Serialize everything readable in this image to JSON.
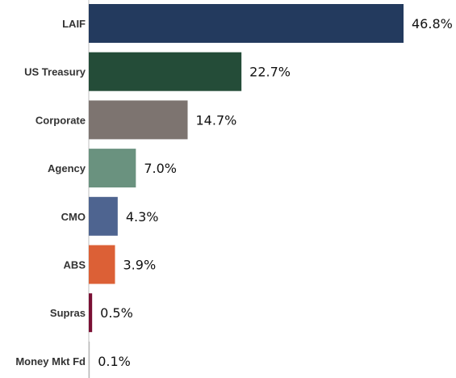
{
  "chart_data": {
    "type": "bar",
    "orientation": "horizontal",
    "categories": [
      "LAIF",
      "US Treasury",
      "Corporate",
      "Agency",
      "CMO",
      "ABS",
      "Supras",
      "Money Mkt Fd"
    ],
    "values": [
      46.8,
      22.7,
      14.7,
      7.0,
      4.3,
      3.9,
      0.5,
      0.1
    ],
    "value_labels": [
      "46.8%",
      "22.7%",
      "14.7%",
      "7.0%",
      "4.3%",
      "3.9%",
      "0.5%",
      "0.1%"
    ],
    "colors": [
      "#233a5e",
      "#244c38",
      "#7d7470",
      "#6a927f",
      "#4e6490",
      "#dc6036",
      "#7a1034",
      "#b9b9b9"
    ],
    "xlim": [
      0,
      46.8
    ],
    "grid": false,
    "legend": "none"
  }
}
